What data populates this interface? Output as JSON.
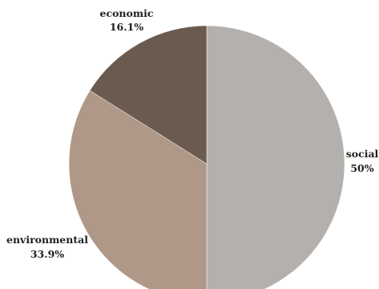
{
  "chart_data": {
    "type": "pie",
    "slices": [
      {
        "label": "social",
        "percent_label": "50%",
        "value": 50.0,
        "color": "#b4b0ad"
      },
      {
        "label": "environmental",
        "percent_label": "33.9%",
        "value": 33.9,
        "color": "#af9888"
      },
      {
        "label": "economic",
        "percent_label": "16.1%",
        "value": 16.1,
        "color": "#6a5a4f"
      }
    ],
    "start_angle_deg": 0,
    "direction": "clockwise",
    "legend": "none"
  }
}
